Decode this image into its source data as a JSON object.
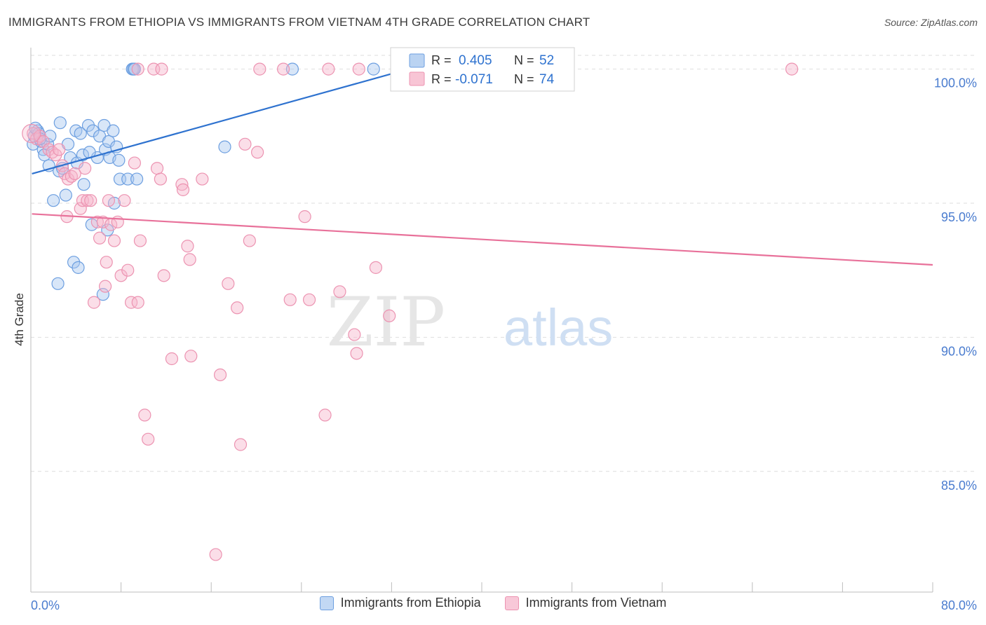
{
  "title": "IMMIGRANTS FROM ETHIOPIA VS IMMIGRANTS FROM VIETNAM 4TH GRADE CORRELATION CHART",
  "source": "Source: ZipAtlas.com",
  "colors": {
    "blue": "#2e72cf",
    "blue_fill": "#a9c8ef",
    "pink": "#e8719a",
    "pink_fill": "#f6b6cb",
    "axis_text": "#4a7ccf",
    "grid": "#dedede"
  },
  "watermark": {
    "zip": "ZIP",
    "atlas": "atlas"
  },
  "legend": {
    "r_label": "R =",
    "n_label": "N =",
    "rows": [
      {
        "r": "0.405",
        "n": "52"
      },
      {
        "r": "-0.071",
        "n": "74"
      }
    ]
  },
  "chart_data": {
    "type": "scatter",
    "title": "IMMIGRANTS FROM ETHIOPIA VS IMMIGRANTS FROM VIETNAM 4TH GRADE CORRELATION CHART",
    "xlabel": "",
    "ylabel": "4th Grade",
    "xlim": [
      0,
      80
    ],
    "ylim": [
      80.5,
      100.8
    ],
    "x_tick_labels": [
      "0.0%",
      "80.0%"
    ],
    "y_ticks": [
      85,
      90,
      95,
      100
    ],
    "y_tick_labels": [
      "85.0%",
      "90.0%",
      "95.0%",
      "100.0%"
    ],
    "series": [
      {
        "name": "Immigrants from Ethiopia",
        "color": "blue",
        "R": 0.405,
        "N": 52,
        "trend": {
          "x": [
            0.1,
            33.5
          ],
          "y": [
            96.1,
            100.0
          ]
        },
        "points": [
          [
            0.2,
            97.2
          ],
          [
            0.3,
            97.5
          ],
          [
            0.6,
            97.7
          ],
          [
            0.7,
            97.6
          ],
          [
            0.9,
            97.3
          ],
          [
            1.1,
            97.0
          ],
          [
            1.2,
            96.8
          ],
          [
            1.5,
            97.2
          ],
          [
            1.6,
            96.4
          ],
          [
            1.7,
            97.5
          ],
          [
            2.0,
            95.1
          ],
          [
            2.6,
            98.0
          ],
          [
            2.5,
            96.2
          ],
          [
            2.8,
            96.3
          ],
          [
            3.1,
            95.3
          ],
          [
            3.3,
            97.2
          ],
          [
            3.5,
            96.7
          ],
          [
            3.8,
            92.8
          ],
          [
            4.0,
            97.7
          ],
          [
            4.1,
            96.5
          ],
          [
            4.4,
            97.6
          ],
          [
            4.6,
            96.8
          ],
          [
            4.7,
            95.7
          ],
          [
            5.1,
            97.9
          ],
          [
            5.4,
            94.2
          ],
          [
            5.5,
            97.7
          ],
          [
            5.9,
            96.7
          ],
          [
            6.1,
            97.5
          ],
          [
            6.4,
            91.6
          ],
          [
            6.5,
            97.9
          ],
          [
            6.6,
            97.0
          ],
          [
            6.8,
            94.0
          ],
          [
            6.9,
            97.3
          ],
          [
            7.0,
            96.7
          ],
          [
            7.3,
            97.7
          ],
          [
            7.6,
            97.1
          ],
          [
            7.4,
            95.0
          ],
          [
            7.8,
            96.6
          ],
          [
            7.9,
            95.9
          ],
          [
            8.6,
            95.9
          ],
          [
            9.4,
            95.9
          ],
          [
            9.0,
            100.0
          ],
          [
            9.1,
            100.0
          ],
          [
            17.2,
            97.1
          ],
          [
            23.2,
            100.0
          ],
          [
            30.4,
            100.0
          ],
          [
            2.4,
            92.0
          ],
          [
            4.2,
            92.6
          ],
          [
            0.4,
            97.8
          ],
          [
            0.8,
            97.4
          ],
          [
            5.2,
            96.9
          ],
          [
            9.2,
            100.0
          ]
        ]
      },
      {
        "name": "Immigrants from Vietnam",
        "color": "pink",
        "R": -0.071,
        "N": 74,
        "trend": {
          "x": [
            0.1,
            80.0
          ],
          "y": [
            94.6,
            92.7
          ]
        },
        "points": [
          [
            0.2,
            97.6
          ],
          [
            0.5,
            97.4
          ],
          [
            0.8,
            97.5
          ],
          [
            1.1,
            97.3
          ],
          [
            1.6,
            97.0
          ],
          [
            1.9,
            96.9
          ],
          [
            2.2,
            96.8
          ],
          [
            2.5,
            97.0
          ],
          [
            2.8,
            96.4
          ],
          [
            3.0,
            96.1
          ],
          [
            3.3,
            95.9
          ],
          [
            3.6,
            96.0
          ],
          [
            3.9,
            96.1
          ],
          [
            4.4,
            94.8
          ],
          [
            4.6,
            95.1
          ],
          [
            4.8,
            96.3
          ],
          [
            5.0,
            95.1
          ],
          [
            5.3,
            95.1
          ],
          [
            5.6,
            91.3
          ],
          [
            5.9,
            94.3
          ],
          [
            6.1,
            93.7
          ],
          [
            6.4,
            94.3
          ],
          [
            6.7,
            92.8
          ],
          [
            6.9,
            95.1
          ],
          [
            7.1,
            94.2
          ],
          [
            7.4,
            93.6
          ],
          [
            7.7,
            94.3
          ],
          [
            8.0,
            92.3
          ],
          [
            8.3,
            95.1
          ],
          [
            8.6,
            92.5
          ],
          [
            8.9,
            91.3
          ],
          [
            9.2,
            96.5
          ],
          [
            9.5,
            91.3
          ],
          [
            9.7,
            93.6
          ],
          [
            10.1,
            87.1
          ],
          [
            10.4,
            86.2
          ],
          [
            10.9,
            100.0
          ],
          [
            11.2,
            96.3
          ],
          [
            11.5,
            95.9
          ],
          [
            11.8,
            92.3
          ],
          [
            12.5,
            89.2
          ],
          [
            13.4,
            95.7
          ],
          [
            13.5,
            95.5
          ],
          [
            13.9,
            93.4
          ],
          [
            14.1,
            92.9
          ],
          [
            14.2,
            89.3
          ],
          [
            15.2,
            95.9
          ],
          [
            16.4,
            81.9
          ],
          [
            16.8,
            88.6
          ],
          [
            17.5,
            92.0
          ],
          [
            18.3,
            91.1
          ],
          [
            18.6,
            86.0
          ],
          [
            19.4,
            93.6
          ],
          [
            20.1,
            96.9
          ],
          [
            20.3,
            100.0
          ],
          [
            22.4,
            100.0
          ],
          [
            23.0,
            91.4
          ],
          [
            24.3,
            94.5
          ],
          [
            24.7,
            91.4
          ],
          [
            26.1,
            87.1
          ],
          [
            26.4,
            100.0
          ],
          [
            27.4,
            91.7
          ],
          [
            28.7,
            90.1
          ],
          [
            28.9,
            89.4
          ],
          [
            29.1,
            100.0
          ],
          [
            30.6,
            92.6
          ],
          [
            31.8,
            90.8
          ],
          [
            43.4,
            100.0
          ],
          [
            67.5,
            100.0
          ],
          [
            11.6,
            100.0
          ],
          [
            9.5,
            100.0
          ],
          [
            3.2,
            94.5
          ],
          [
            6.6,
            91.9
          ],
          [
            19.0,
            97.2
          ]
        ]
      }
    ]
  }
}
